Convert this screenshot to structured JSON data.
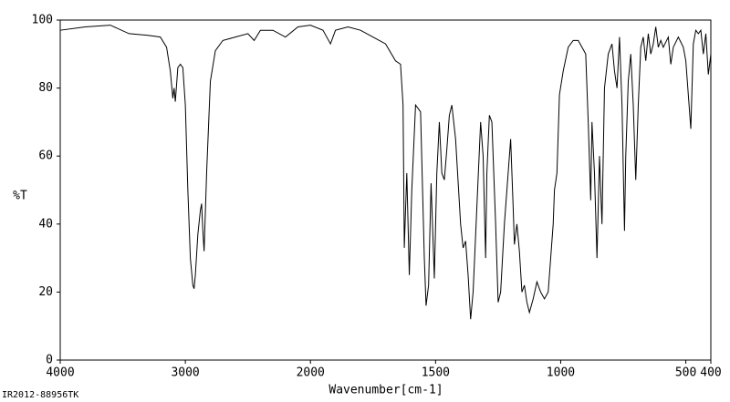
{
  "chart_data": {
    "type": "line",
    "x_label": "Wavenumber[cm-1]",
    "y_label": "%T",
    "footer": "IR2012-88956TK",
    "xlim": [
      4000,
      400
    ],
    "xbreak": 2000,
    "xticks": [
      4000,
      3000,
      2000,
      1500,
      1000,
      500,
      400
    ],
    "ylim": [
      0,
      100
    ],
    "yticks": [
      0,
      20,
      40,
      60,
      80,
      100
    ],
    "color": "#000000",
    "x": [
      4000,
      3800,
      3600,
      3450,
      3300,
      3200,
      3150,
      3120,
      3100,
      3090,
      3080,
      3060,
      3040,
      3020,
      3000,
      2980,
      2960,
      2940,
      2930,
      2920,
      2900,
      2880,
      2870,
      2860,
      2850,
      2830,
      2800,
      2760,
      2700,
      2600,
      2500,
      2450,
      2400,
      2300,
      2200,
      2100,
      2000,
      1950,
      1920,
      1900,
      1850,
      1800,
      1750,
      1700,
      1660,
      1640,
      1630,
      1625,
      1615,
      1605,
      1595,
      1580,
      1560,
      1545,
      1538,
      1528,
      1518,
      1510,
      1505,
      1495,
      1485,
      1475,
      1465,
      1455,
      1445,
      1435,
      1420,
      1400,
      1390,
      1380,
      1370,
      1360,
      1350,
      1335,
      1320,
      1310,
      1300,
      1295,
      1285,
      1275,
      1260,
      1250,
      1240,
      1225,
      1210,
      1200,
      1190,
      1185,
      1175,
      1165,
      1155,
      1145,
      1135,
      1125,
      1110,
      1095,
      1080,
      1065,
      1050,
      1040,
      1030,
      1025,
      1015,
      1005,
      990,
      970,
      950,
      930,
      900,
      890,
      880,
      875,
      865,
      855,
      845,
      835,
      825,
      810,
      795,
      785,
      775,
      765,
      755,
      745,
      740,
      730,
      720,
      710,
      700,
      690,
      680,
      670,
      660,
      650,
      640,
      630,
      620,
      610,
      600,
      590,
      570,
      560,
      550,
      530,
      510,
      500,
      480,
      470,
      460,
      450,
      440,
      430,
      420,
      410,
      400
    ],
    "values": [
      97,
      98,
      98.5,
      96,
      95.5,
      95,
      92,
      85,
      77,
      80,
      76,
      86,
      87,
      86,
      75,
      50,
      30,
      22,
      21,
      25,
      37,
      44,
      46,
      38,
      32,
      55,
      82,
      91,
      94,
      95,
      96,
      94,
      97,
      97,
      95,
      98,
      98.5,
      97,
      93,
      97,
      98,
      97,
      95,
      93,
      88,
      87,
      75,
      33,
      55,
      25,
      50,
      75,
      73,
      30,
      16,
      22,
      52,
      35,
      24,
      55,
      70,
      55,
      53,
      62,
      72,
      75,
      65,
      40,
      33,
      35,
      25,
      12,
      20,
      45,
      70,
      60,
      30,
      55,
      72,
      70,
      40,
      17,
      20,
      40,
      55,
      65,
      45,
      34,
      40,
      32,
      20,
      22,
      17,
      14,
      18,
      23,
      20,
      18,
      20,
      30,
      40,
      50,
      55,
      78,
      85,
      92,
      94,
      94,
      90,
      70,
      47,
      70,
      55,
      30,
      60,
      40,
      80,
      90,
      93,
      85,
      80,
      95,
      75,
      38,
      60,
      82,
      90,
      75,
      53,
      75,
      92,
      95,
      88,
      96,
      90,
      93,
      98,
      92,
      94,
      92,
      95,
      87,
      92,
      95,
      92,
      88,
      68,
      93,
      97,
      96,
      97,
      90,
      96,
      84,
      90
    ]
  }
}
